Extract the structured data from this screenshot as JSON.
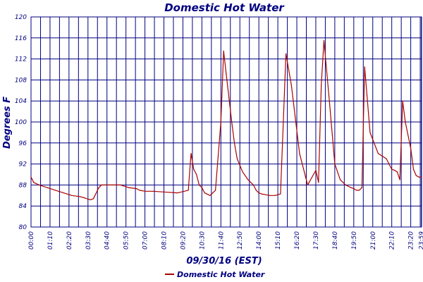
{
  "chart_data": {
    "type": "line",
    "title": "Domestic Hot Water",
    "xlabel": "09/30/16 (EST)",
    "ylabel": "Degrees F",
    "ylim": [
      80,
      120
    ],
    "yticks": [
      "80",
      "84",
      "88",
      "92",
      "96",
      "100",
      "104",
      "108",
      "112",
      "116",
      "120"
    ],
    "xticks": [
      "00:00",
      "01:10",
      "02:20",
      "03:30",
      "04:40",
      "05:50",
      "07:00",
      "08:10",
      "09:20",
      "10:30",
      "11:40",
      "12:50",
      "14:00",
      "15:10",
      "16:20",
      "17:30",
      "18:40",
      "19:50",
      "21:00",
      "22:10",
      "23:20",
      "23:59"
    ],
    "grid": true,
    "legend_position": "bottom-left",
    "colors": {
      "series": "#aa0000",
      "grid": "#000080",
      "text": "#000080"
    },
    "series": [
      {
        "name": "Domestic Hot Water",
        "x_minutes": [
          0,
          10,
          30,
          60,
          90,
          120,
          150,
          180,
          200,
          210,
          220,
          230,
          245,
          250,
          260,
          270,
          300,
          330,
          360,
          390,
          400,
          420,
          450,
          510,
          540,
          580,
          590,
          600,
          610,
          620,
          630,
          640,
          660,
          680,
          700,
          710,
          720,
          740,
          750,
          760,
          780,
          800,
          820,
          830,
          840,
          850,
          860,
          880,
          900,
          920,
          940,
          960,
          990,
          1020,
          1050,
          1060,
          1070,
          1080,
          1100,
          1120,
          1140,
          1160,
          1180,
          1190,
          1200,
          1210,
          1220,
          1230,
          1250,
          1280,
          1310,
          1320,
          1330,
          1340,
          1350,
          1360,
          1370,
          1380,
          1400,
          1410,
          1420,
          1430,
          1440
        ],
        "y": [
          89.5,
          88.5,
          88,
          87.5,
          87,
          86.5,
          86,
          85.8,
          85.5,
          85.3,
          85.2,
          85.4,
          87,
          87.5,
          88,
          88,
          88,
          88,
          87.5,
          87.3,
          87,
          86.8,
          86.8,
          86.6,
          86.5,
          87,
          94,
          91,
          90,
          88,
          87.5,
          86.5,
          86,
          87,
          100,
          113.5,
          109,
          100,
          96,
          93,
          90.5,
          89,
          88,
          87,
          86.5,
          86.3,
          86.2,
          86,
          86,
          86.3,
          113,
          107,
          94,
          88,
          90.8,
          88.5,
          107,
          115.5,
          104,
          92,
          89,
          88,
          87.5,
          87.3,
          87,
          87,
          87.5,
          110.5,
          98,
          94,
          93,
          92,
          91,
          90.8,
          90.5,
          89,
          104,
          100,
          95,
          91,
          89.8,
          89.5,
          89.5
        ]
      }
    ]
  }
}
